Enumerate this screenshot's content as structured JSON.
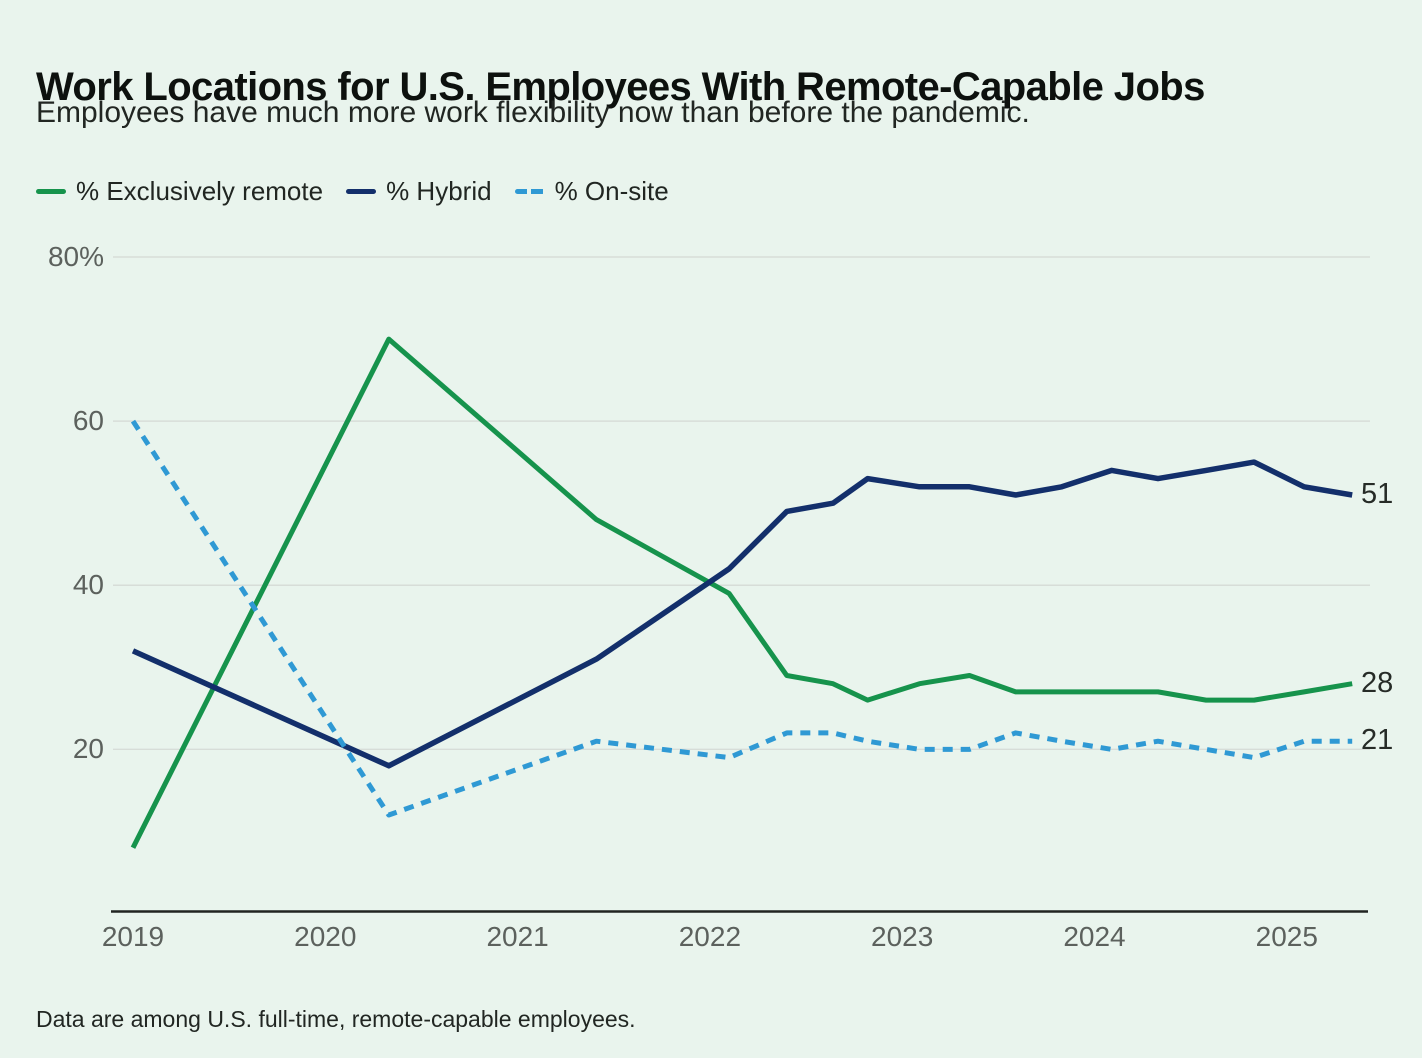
{
  "page": {
    "background": "#e9f4ed"
  },
  "header": {
    "title": "Work Locations for U.S. Employees With Remote-Capable Jobs",
    "subtitle": "Employees have much more work flexibility now than before the pandemic."
  },
  "legend": [
    {
      "label": "% Exclusively remote",
      "color": "#16934c",
      "style": "solid"
    },
    {
      "label": "% Hybrid",
      "color": "#132f6b",
      "style": "solid"
    },
    {
      "label": "% On-site",
      "color": "#2f99d4",
      "style": "dashed"
    }
  ],
  "footnote": "Data are among U.S. full-time, remote-capable employees.",
  "chart_data": {
    "type": "line",
    "title": "Work Locations for U.S. Employees With Remote-Capable Jobs",
    "subtitle": "Employees have much more work flexibility now than before the pandemic.",
    "xlabel": "",
    "ylabel": "",
    "x_unit": "decimal year (quarterly survey waves; 2019 is an annual baseline)",
    "y_unit": "percent of employees",
    "x": [
      2019.0,
      2020.33,
      2021.41,
      2022.1,
      2022.4,
      2022.64,
      2022.82,
      2023.09,
      2023.35,
      2023.59,
      2023.83,
      2024.09,
      2024.33,
      2024.58,
      2024.83,
      2025.09,
      2025.34
    ],
    "series": [
      {
        "name": "% Exclusively remote",
        "slug": "exclusively-remote",
        "color": "#16934c",
        "style": "solid",
        "end_label": "28",
        "values": [
          8,
          70,
          48,
          39,
          29,
          28,
          26,
          28,
          29,
          27,
          27,
          27,
          27,
          26,
          26,
          27,
          28
        ]
      },
      {
        "name": "% Hybrid",
        "slug": "hybrid",
        "color": "#132f6b",
        "style": "solid",
        "end_label": "51",
        "values": [
          32,
          18,
          31,
          42,
          49,
          50,
          53,
          52,
          52,
          51,
          52,
          54,
          53,
          54,
          55,
          52,
          51
        ]
      },
      {
        "name": "% On-site",
        "slug": "on-site",
        "color": "#2f99d4",
        "style": "dashed",
        "end_label": "21",
        "values": [
          60,
          12,
          21,
          19,
          22,
          22,
          21,
          20,
          20,
          22,
          21,
          20,
          21,
          20,
          19,
          21,
          21
        ]
      }
    ],
    "xticks": [
      2019,
      2020,
      2021,
      2022,
      2023,
      2024,
      2025
    ],
    "xtick_labels": [
      "2019",
      "2020",
      "2021",
      "2022",
      "2023",
      "2024",
      "2025"
    ],
    "yticks": [
      20,
      40,
      60,
      80
    ],
    "ytick_labels": [
      "20",
      "40",
      "60",
      "80%"
    ],
    "xlim": [
      2018.89,
      2025.43
    ],
    "ylim": [
      0,
      80
    ],
    "grid": "horizontal-only",
    "legend_position": "top-left"
  }
}
